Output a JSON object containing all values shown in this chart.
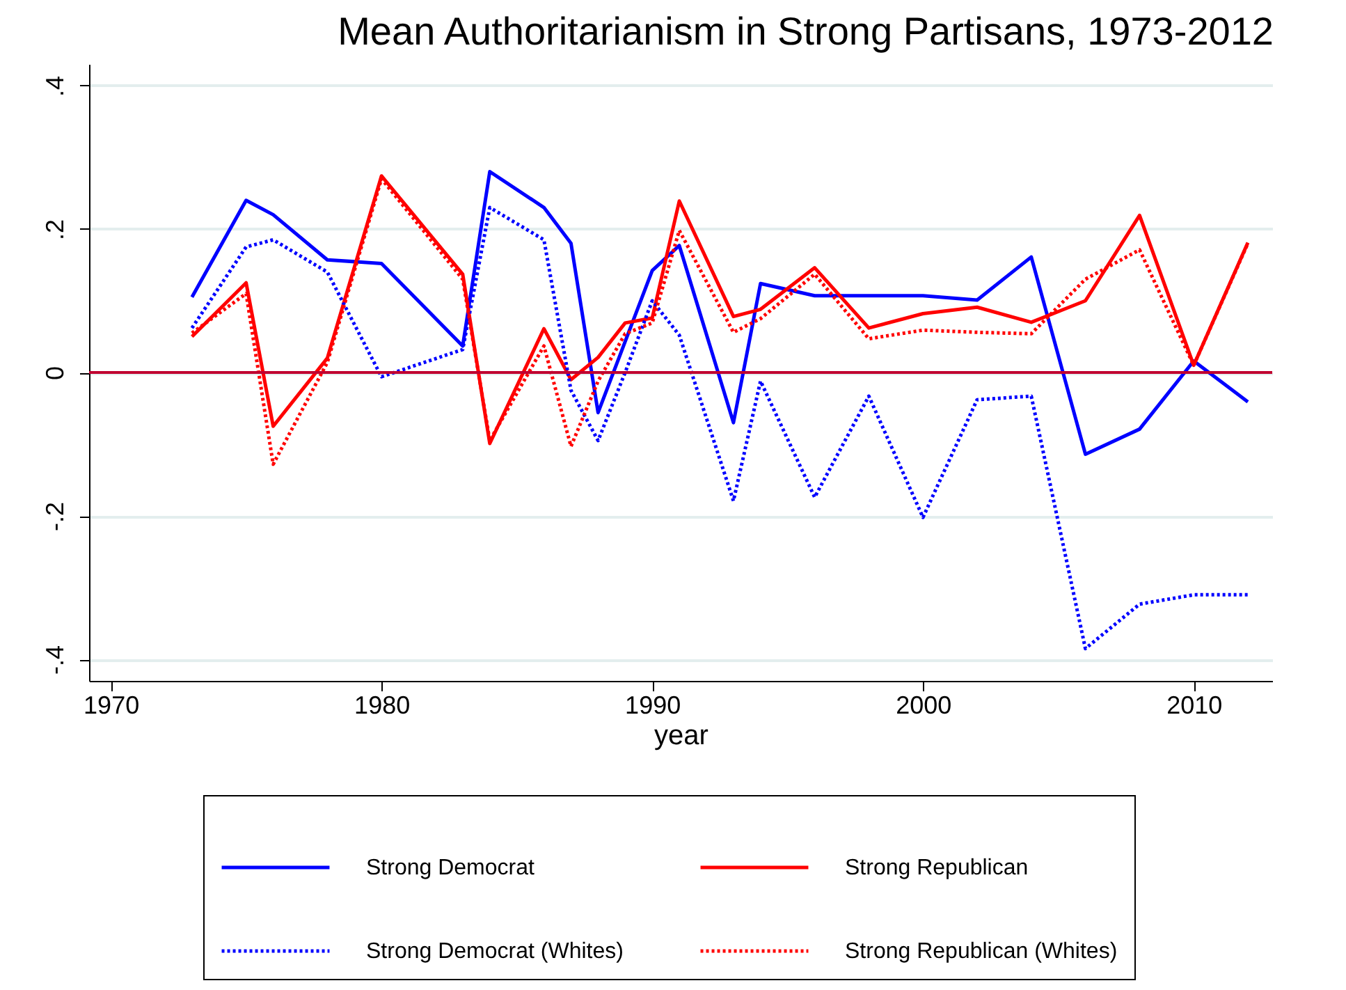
{
  "chart_data": {
    "type": "line",
    "title": "Mean Authoritarianism in Strong Partisans, 1973-2012",
    "xlabel": "year",
    "x": [
      1973,
      1975,
      1976,
      1978,
      1980,
      1983,
      1984,
      1986,
      1987,
      1988,
      1989,
      1990,
      1991,
      1993,
      1994,
      1996,
      1998,
      2000,
      2002,
      2004,
      2006,
      2008,
      2010,
      2012
    ],
    "series": [
      {
        "name": "Strong Democrat",
        "color": "#0000ff",
        "line_style": "solid",
        "values": [
          0.105,
          0.24,
          0.22,
          0.157,
          0.152,
          0.037,
          0.28,
          0.23,
          0.18,
          -0.056,
          0.043,
          0.142,
          0.177,
          -0.07,
          0.124,
          0.107,
          0.107,
          0.107,
          0.101,
          0.161,
          -0.114,
          -0.079,
          0.016,
          -0.041
        ]
      },
      {
        "name": "Strong Republican",
        "color": "#ff0000",
        "line_style": "solid",
        "values": [
          0.05,
          0.125,
          -0.075,
          0.02,
          0.274,
          0.137,
          -0.099,
          0.061,
          -0.01,
          0.021,
          0.069,
          0.076,
          0.239,
          0.078,
          0.088,
          0.146,
          0.062,
          0.082,
          0.091,
          0.07,
          0.1,
          0.219,
          0.01,
          0.181
        ]
      },
      {
        "name": "Strong Democrat (Whites)",
        "color": "#0000ff",
        "line_style": "dotted",
        "values": [
          0.062,
          0.175,
          0.185,
          0.14,
          -0.006,
          0.032,
          0.23,
          0.185,
          -0.025,
          -0.095,
          0.0,
          0.1,
          0.052,
          -0.179,
          -0.012,
          -0.174,
          -0.033,
          -0.202,
          -0.038,
          -0.033,
          -0.385,
          -0.323,
          -0.31,
          -0.31
        ]
      },
      {
        "name": "Strong Republican (Whites)",
        "color": "#ff0000",
        "line_style": "dotted",
        "values": [
          0.055,
          0.11,
          -0.128,
          0.014,
          0.27,
          0.13,
          -0.095,
          0.037,
          -0.103,
          -0.012,
          0.054,
          0.069,
          0.198,
          0.056,
          0.075,
          0.137,
          0.047,
          0.059,
          0.056,
          0.054,
          0.13,
          0.171,
          0.01,
          0.18
        ]
      }
    ],
    "xlim": [
      1969.2,
      2012.9
    ],
    "xticks": [
      1970,
      1980,
      1990,
      2000,
      2010
    ],
    "ylim": [
      -0.43,
      0.43
    ],
    "yticks": [
      {
        "value": -0.4,
        "label": "-.4"
      },
      {
        "value": -0.2,
        "label": "-.2"
      },
      0,
      {
        "value": 0.2,
        "label": ".2"
      },
      {
        "value": 0.4,
        "label": ".4"
      }
    ],
    "grid": "y",
    "legend": "bottom",
    "ref_lines": [
      {
        "axis": "y",
        "value": 0,
        "color": "#c00030"
      }
    ]
  }
}
